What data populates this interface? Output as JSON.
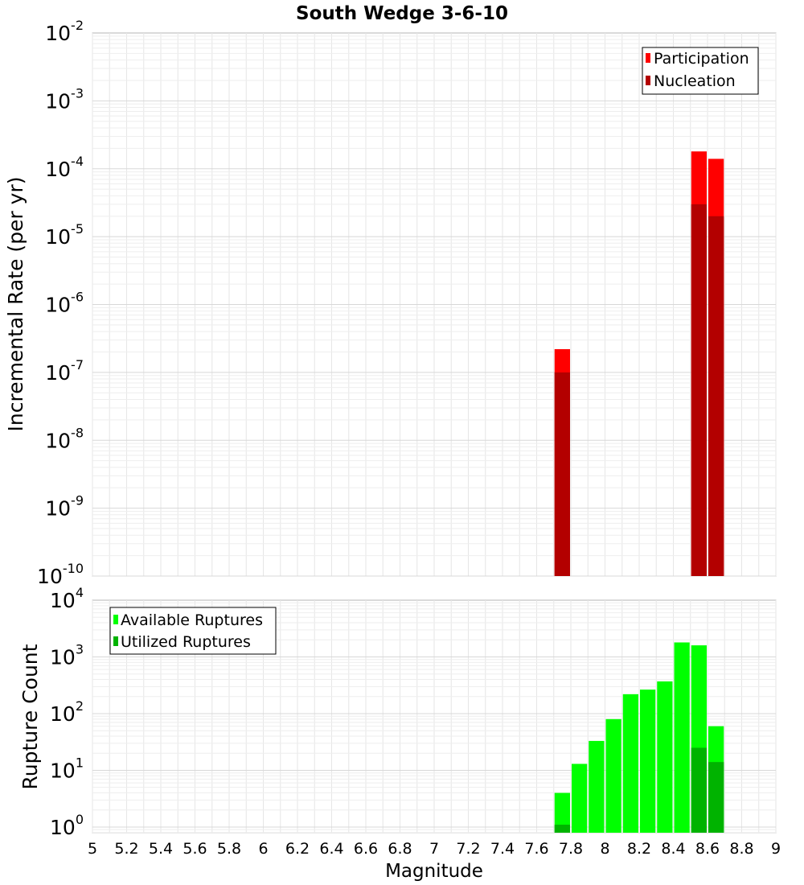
{
  "chart_data": [
    {
      "type": "bar",
      "title": "South Wedge 3-6-10",
      "xlabel": "",
      "ylabel": "Incremental Rate (per yr)",
      "yscale": "log",
      "xlim": [
        5,
        9
      ],
      "ylim_exp": [
        -10,
        -2
      ],
      "bin_width": 0.1,
      "legend": {
        "position": "top-right",
        "entries": [
          "Participation",
          "Nucleation"
        ]
      },
      "series": [
        {
          "name": "Participation",
          "color": "#ff0000",
          "x": [
            7.75,
            8.55,
            8.65
          ],
          "values": [
            2.2e-07,
            0.00018,
            0.00014
          ]
        },
        {
          "name": "Nucleation",
          "color": "#b30000",
          "x": [
            7.75,
            8.55,
            8.65
          ],
          "values": [
            1e-07,
            3e-05,
            2e-05
          ]
        }
      ],
      "y_ticks": [
        {
          "base": "10",
          "exp": "-10"
        },
        {
          "base": "10",
          "exp": "-9"
        },
        {
          "base": "10",
          "exp": "-8"
        },
        {
          "base": "10",
          "exp": "-7"
        },
        {
          "base": "10",
          "exp": "-6"
        },
        {
          "base": "10",
          "exp": "-5"
        },
        {
          "base": "10",
          "exp": "-4"
        },
        {
          "base": "10",
          "exp": "-3"
        },
        {
          "base": "10",
          "exp": "-2"
        }
      ]
    },
    {
      "type": "bar",
      "title": "",
      "xlabel": "Magnitude",
      "ylabel": "Rupture Count",
      "yscale": "log",
      "xlim": [
        5,
        9
      ],
      "ylim_exp": [
        -0.1,
        4
      ],
      "bin_width": 0.1,
      "legend": {
        "position": "top-left",
        "entries": [
          "Available Ruptures",
          "Utilized Ruptures"
        ]
      },
      "series": [
        {
          "name": "Available Ruptures",
          "color": "#00ff00",
          "x": [
            7.75,
            7.85,
            7.95,
            8.05,
            8.15,
            8.25,
            8.35,
            8.45,
            8.55,
            8.65
          ],
          "values": [
            4,
            13,
            33,
            80,
            220,
            265,
            370,
            1800,
            1600,
            60
          ]
        },
        {
          "name": "Utilized Ruptures",
          "color": "#00b300",
          "x": [
            7.75,
            8.55,
            8.65
          ],
          "values": [
            1.1,
            25,
            14
          ]
        }
      ],
      "y_ticks": [
        {
          "base": "10",
          "exp": "0"
        },
        {
          "base": "10",
          "exp": "1"
        },
        {
          "base": "10",
          "exp": "2"
        },
        {
          "base": "10",
          "exp": "3"
        },
        {
          "base": "10",
          "exp": "4"
        }
      ],
      "x_ticks": [
        "5",
        "5.2",
        "5.4",
        "5.6",
        "5.8",
        "6",
        "6.2",
        "6.4",
        "6.6",
        "6.8",
        "7",
        "7.2",
        "7.4",
        "7.6",
        "7.8",
        "8",
        "8.2",
        "8.4",
        "8.6",
        "8.8",
        "9"
      ]
    }
  ]
}
